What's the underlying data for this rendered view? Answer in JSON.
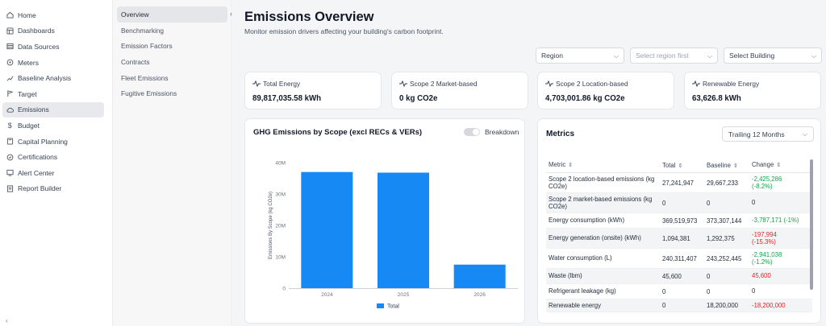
{
  "sidebar": {
    "items": [
      {
        "label": "Home",
        "icon": "home-icon"
      },
      {
        "label": "Dashboards",
        "icon": "dashboard-icon"
      },
      {
        "label": "Data Sources",
        "icon": "data-sources-icon"
      },
      {
        "label": "Meters",
        "icon": "meter-icon"
      },
      {
        "label": "Baseline Analysis",
        "icon": "trend-icon"
      },
      {
        "label": "Target",
        "icon": "target-icon"
      },
      {
        "label": "Emissions",
        "icon": "cloud-icon"
      },
      {
        "label": "Budget",
        "icon": "dollar-icon"
      },
      {
        "label": "Capital Planning",
        "icon": "calculator-icon"
      },
      {
        "label": "Certifications",
        "icon": "certificate-icon"
      },
      {
        "label": "Alert Center",
        "icon": "alert-icon"
      },
      {
        "label": "Report Builder",
        "icon": "report-icon"
      }
    ],
    "active": "Emissions"
  },
  "subnav": {
    "items": [
      "Overview",
      "Benchmarking",
      "Emission Factors",
      "Contracts",
      "Fleet Emissions",
      "Fugitive Emissions"
    ],
    "active": "Overview",
    "collapse_icon": "‹"
  },
  "header": {
    "title": "Emissions Overview",
    "subtitle": "Monitor emission drivers affecting your building's carbon footprint."
  },
  "filters": {
    "region": "Region",
    "subregion": "Select region first",
    "building": "Select Building"
  },
  "kpis": [
    {
      "label": "Total Energy",
      "value": "89,817,035.58 kWh"
    },
    {
      "label": "Scope 2 Market-based",
      "value": "0 kg CO2e"
    },
    {
      "label": "Scope 2 Location-based",
      "value": "4,703,001.86 kg CO2e"
    },
    {
      "label": "Renewable Energy",
      "value": "63,626.8 kWh"
    }
  ],
  "chart_card": {
    "title": "GHG Emissions by Scope (excl RECs & VERs)",
    "toggle_label": "Breakdown"
  },
  "chart_data": {
    "type": "bar",
    "categories": [
      "2024",
      "2025",
      "2026"
    ],
    "series": [
      {
        "name": "Total",
        "values": [
          37000000,
          36800000,
          7500000
        ],
        "color": "#1689f5"
      }
    ],
    "ylabel": "Emissions By Scope (kg CO2e)",
    "yticks": [
      "0",
      "10M",
      "20M",
      "30M",
      "40M"
    ],
    "ylim": [
      0,
      40000000
    ],
    "legend": "bottom",
    "grid": false
  },
  "metrics": {
    "title": "Metrics",
    "period": "Trailing 12 Months",
    "columns": [
      "Metric",
      "Total",
      "Baseline",
      "Change"
    ],
    "sort_icon": "⇕",
    "rows": [
      {
        "metric": "Scope 2 location-based emissions",
        "unit": "(kg CO2e)",
        "total": "27,241,947",
        "baseline": "29,667,233",
        "change": "-2,425,286",
        "pct": "(-8.2%)",
        "status": "good"
      },
      {
        "metric": "Scope 2 market-based emissions",
        "unit": "(kg CO2e)",
        "total": "0",
        "baseline": "0",
        "change": "0",
        "pct": "",
        "status": "neutral"
      },
      {
        "metric": "Energy consumption",
        "unit": "(kWh)",
        "total": "369,519,973",
        "baseline": "373,307,144",
        "change": "-3,787,171 (-1%)",
        "pct": "",
        "status": "good"
      },
      {
        "metric": "Energy generation (onsite)",
        "unit": "(kWh)",
        "total": "1,094,381",
        "baseline": "1,292,375",
        "change": "-197,994",
        "pct": "(-15.3%)",
        "status": "bad"
      },
      {
        "metric": "Water consumption",
        "unit": "(L)",
        "total": "240,311,407",
        "baseline": "243,252,445",
        "change": "-2,941,038",
        "pct": "(-1.2%)",
        "status": "good"
      },
      {
        "metric": "Waste",
        "unit": "(lbm)",
        "total": "45,600",
        "baseline": "0",
        "change": "45,600",
        "pct": "",
        "status": "bad"
      },
      {
        "metric": "Refrigerant leakage",
        "unit": "(kg)",
        "total": "0",
        "baseline": "0",
        "change": "0",
        "pct": "",
        "status": "neutral"
      },
      {
        "metric": "Renewable energy",
        "unit": "",
        "total": "0",
        "baseline": "18,200,000",
        "change": "-18,200,000",
        "pct": "",
        "status": "bad"
      }
    ]
  },
  "colors": {
    "accent": "#1689f5",
    "good": "#16a34a",
    "bad": "#dc2626"
  }
}
